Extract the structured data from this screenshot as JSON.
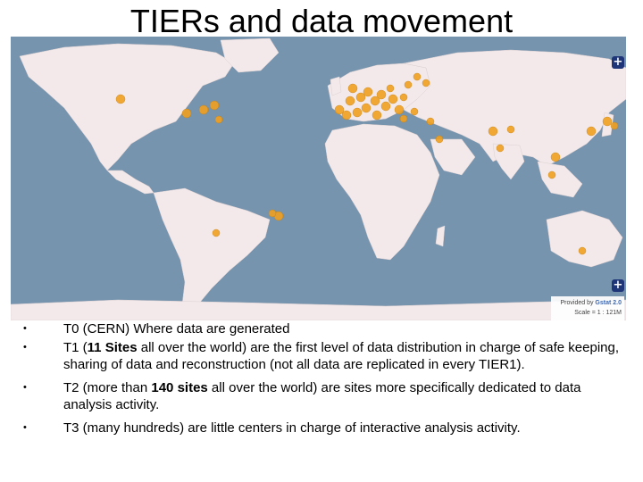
{
  "slide": {
    "title": "TIERs and data movement"
  },
  "map": {
    "credit_prefix": "Provided by ",
    "credit_brand": "Gstat 2.0",
    "scale": "Scale = 1 : 121M",
    "zoom_in_label": "+",
    "zoom_in_label_2": "+",
    "colors": {
      "ocean": "#7694ad",
      "land": "#f3e9ea",
      "site_marker": "#f0a020",
      "zoom_button": "#1e3578"
    }
  },
  "bullets": [
    {
      "parts": [
        {
          "text": "T0 (CERN) Where data are generated",
          "bold": false
        }
      ]
    },
    {
      "parts": [
        {
          "text": "T1 (",
          "bold": false
        },
        {
          "text": "11 Sites",
          "bold": true
        },
        {
          "text": " all over the world) are the first level of data distribution in charge of safe keeping, sharing of data and reconstruction (not all data are replicated in every TIER1).",
          "bold": false
        }
      ]
    },
    {
      "parts": [
        {
          "text": "T2 (more than ",
          "bold": false
        },
        {
          "text": "140 sites",
          "bold": true
        },
        {
          "text": " all over the world) are sites more specifically dedicated to data analysis activity.",
          "bold": false
        }
      ]
    },
    {
      "parts": [
        {
          "text": "T3 (many hundreds) are little centers in charge of interactive analysis activity.",
          "bold": false
        }
      ]
    }
  ],
  "bullet_symbol": "•"
}
